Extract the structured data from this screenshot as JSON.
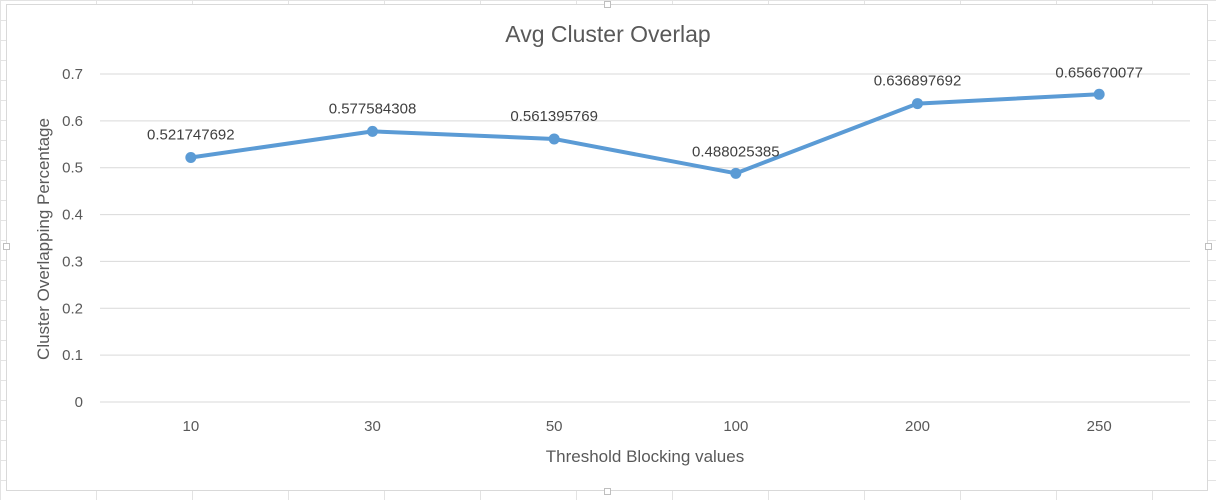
{
  "chart_data": {
    "type": "line",
    "title": "Avg Cluster Overlap",
    "xlabel": "Threshold Blocking values",
    "ylabel": "Cluster Overlapping Percentage",
    "categories": [
      "10",
      "30",
      "50",
      "100",
      "200",
      "250"
    ],
    "series": [
      {
        "values": [
          0.521747692,
          0.577584308,
          0.561395769,
          0.488025385,
          0.636897692,
          0.656670077
        ],
        "labels": [
          "0.521747692",
          "0.577584308",
          "0.561395769",
          "0.488025385",
          "0.636897692",
          "0.656670077"
        ],
        "color": "#5b9bd5"
      }
    ],
    "ylim": [
      0,
      0.7
    ],
    "yticks": [
      "0",
      "0.1",
      "0.2",
      "0.3",
      "0.4",
      "0.5",
      "0.6",
      "0.7"
    ],
    "grid": true,
    "legend": "none",
    "gridline_color": "#d9d9d9",
    "text_color": "#595959"
  }
}
